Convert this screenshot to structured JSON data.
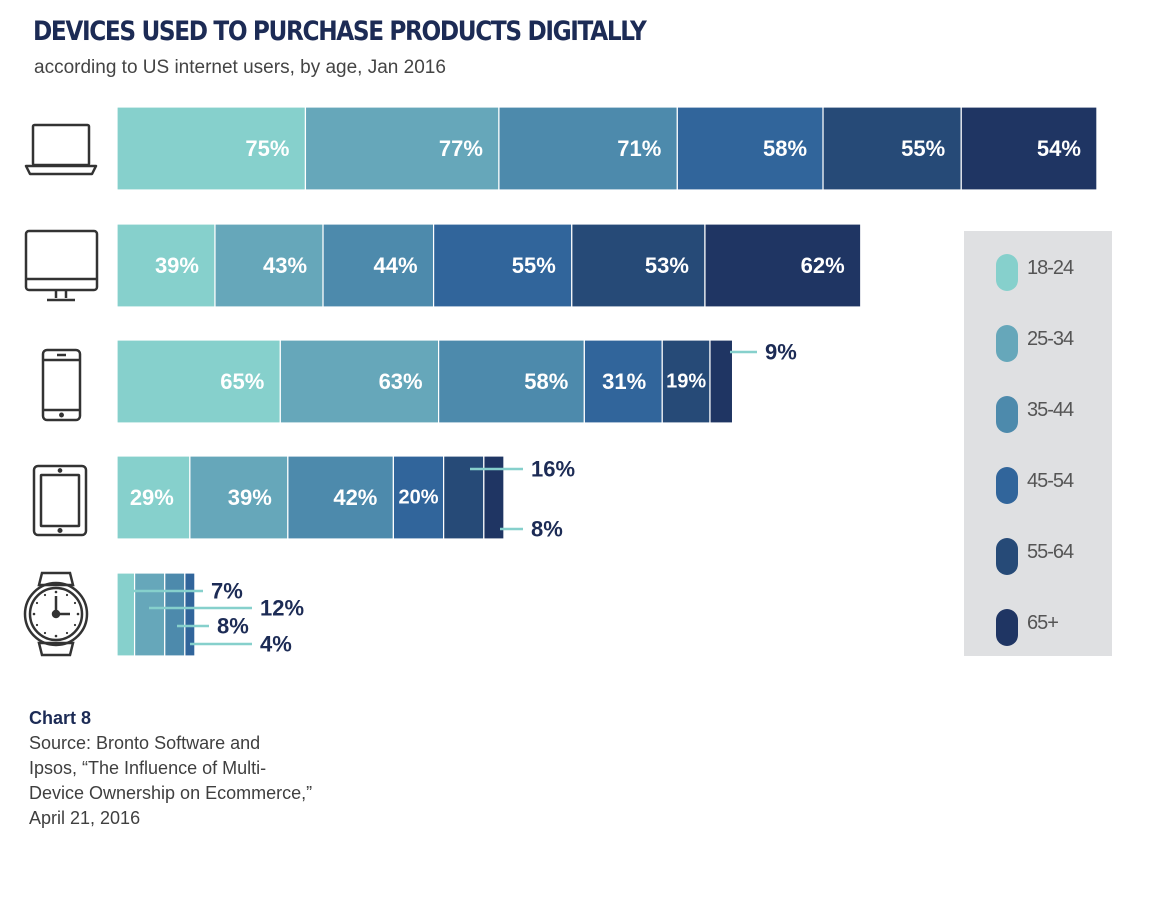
{
  "title": "DEVICES USED TO PURCHASE PRODUCTS DIGITALLY",
  "subtitle": "according to US internet users, by age, Jan 2016",
  "footer": {
    "chart_label": "Chart 8",
    "source_lines": [
      "Source: Bronto Software and",
      "Ipsos, “The Influence of Multi-",
      "Device Ownership on Ecommerce,”",
      "April 21, 2016"
    ]
  },
  "colors": {
    "18-24": "#86d0cc",
    "25-34": "#66a7ba",
    "35-44": "#4d8aac",
    "45-54": "#31659b",
    "55-64": "#264a77",
    "65+": "#1f3563",
    "legend_bg": "#dfe0e2",
    "label_dark": "#1c2b55",
    "leader_line": "#86d0cc"
  },
  "chart_data": {
    "type": "bar",
    "orientation": "horizontal",
    "stacked": true,
    "categories": [
      "laptop-icon",
      "desktop-icon",
      "smartphone-icon",
      "tablet-icon",
      "smartwatch-icon"
    ],
    "series": [
      {
        "name": "18-24",
        "values": [
          75,
          39,
          65,
          29,
          7
        ]
      },
      {
        "name": "25-34",
        "values": [
          77,
          43,
          63,
          39,
          12
        ]
      },
      {
        "name": "35-44",
        "values": [
          71,
          44,
          58,
          42,
          8
        ]
      },
      {
        "name": "45-54",
        "values": [
          58,
          55,
          31,
          20,
          4
        ]
      },
      {
        "name": "55-64",
        "values": [
          55,
          53,
          19,
          16,
          null
        ]
      },
      {
        "name": "65+",
        "values": [
          54,
          62,
          9,
          8,
          null
        ]
      }
    ],
    "data_labels": [
      [
        "75%",
        "77%",
        "71%",
        "58%",
        "55%",
        "54%"
      ],
      [
        "39%",
        "43%",
        "44%",
        "55%",
        "53%",
        "62%"
      ],
      [
        "65%",
        "63%",
        "58%",
        "31%",
        "19%",
        "9%"
      ],
      [
        "29%",
        "39%",
        "42%",
        "20%",
        "16%",
        "8%"
      ],
      [
        "7%",
        "12%",
        "8%",
        "4%",
        "",
        ""
      ]
    ],
    "legend": {
      "placement": "right",
      "entries": [
        "18-24",
        "25-34",
        "35-44",
        "45-54",
        "55-64",
        "65+"
      ]
    },
    "units": "%"
  }
}
